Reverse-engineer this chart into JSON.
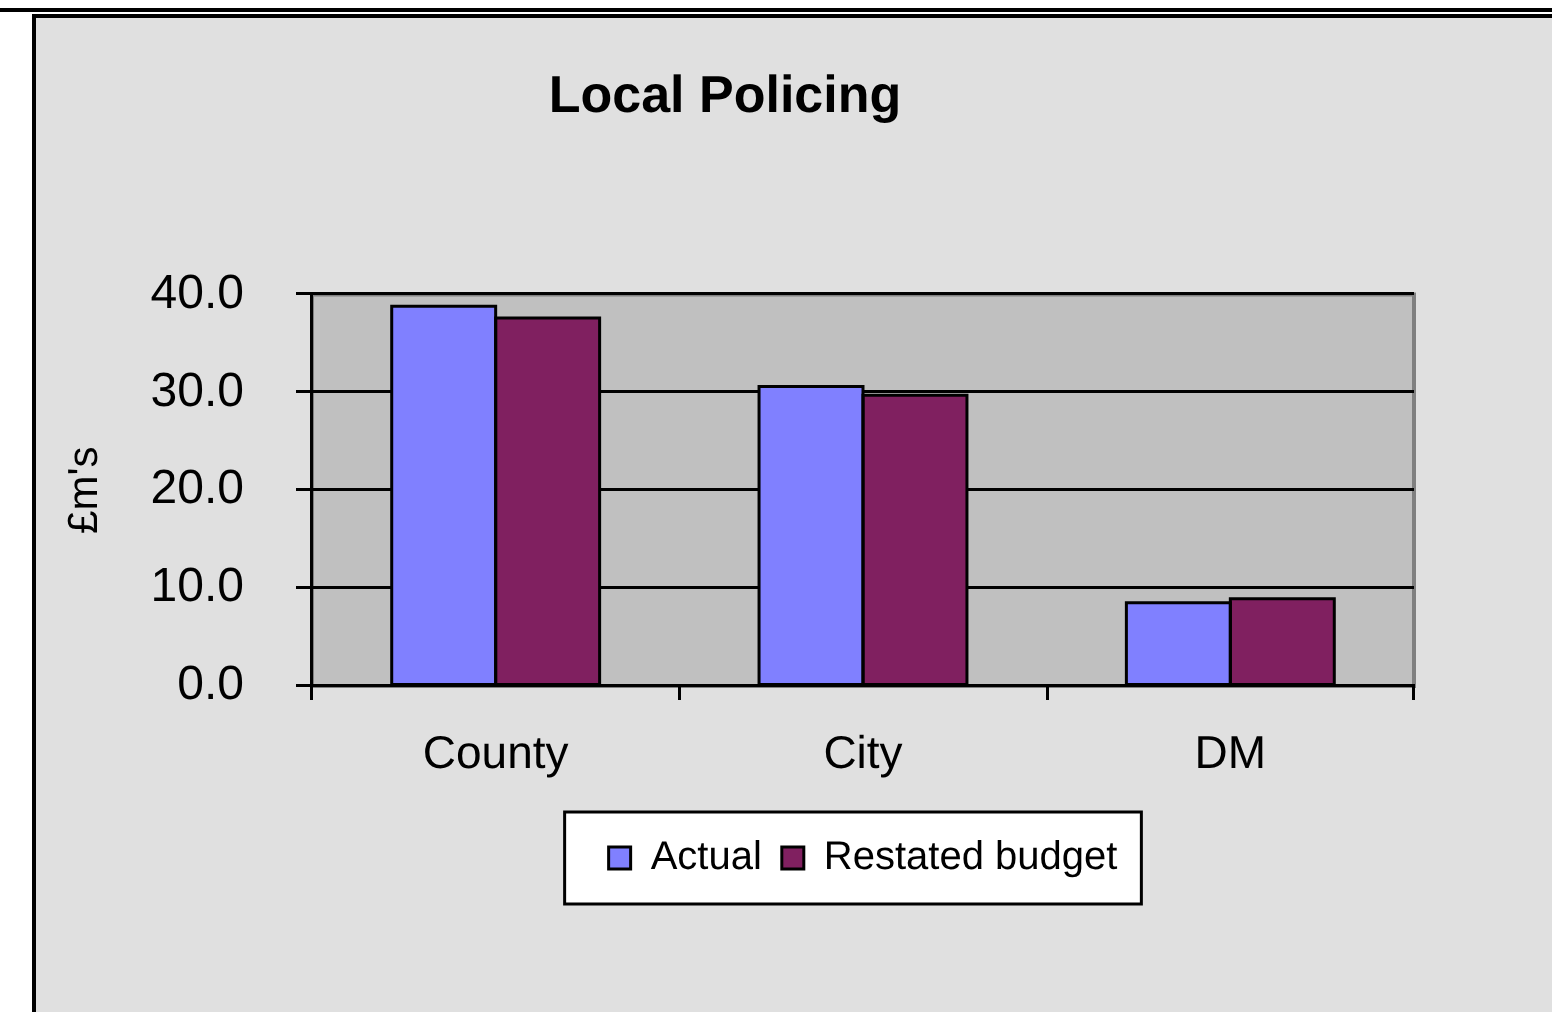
{
  "chart_data": {
    "type": "bar",
    "title": "Local Policing",
    "ylabel": "£m's",
    "categories": [
      "County",
      "City",
      "DM"
    ],
    "series": [
      {
        "name": "Actual",
        "color": "#8080ff",
        "values": [
          38.8,
          30.6,
          8.5
        ]
      },
      {
        "name": "Restated budget",
        "color": "#802060",
        "values": [
          37.6,
          29.7,
          8.9
        ]
      }
    ],
    "ylim": [
      0,
      40
    ],
    "yticks": [
      {
        "value": 0,
        "label": "0.0"
      },
      {
        "value": 10,
        "label": "10.0"
      },
      {
        "value": 20,
        "label": "20.0"
      },
      {
        "value": 30,
        "label": "30.0"
      },
      {
        "value": 40,
        "label": "40.0"
      }
    ],
    "grid": "y",
    "legend": "bottom"
  }
}
